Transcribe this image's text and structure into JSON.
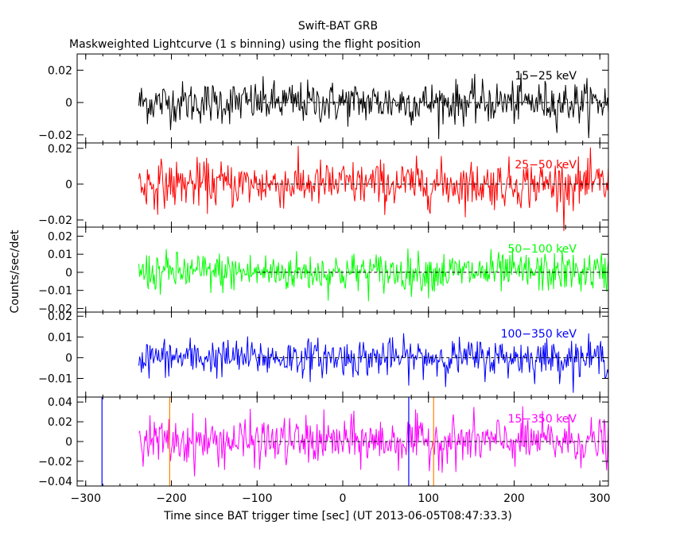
{
  "chart_data": {
    "type": "line",
    "title": "Swift-BAT GRB",
    "subtitle": "Maskweighted Lightcurve (1 s binning) using the flight position",
    "xlabel": "Time since BAT trigger time [sec] (UT 2013-06-05T08:47:33.3)",
    "ylabel": "Counts/sec/det",
    "xlim": [
      -310,
      310
    ],
    "xticks": [
      {
        "value": -300,
        "label": "−300"
      },
      {
        "value": -200,
        "label": "−200"
      },
      {
        "value": -100,
        "label": "−100"
      },
      {
        "value": 0,
        "label": "0"
      },
      {
        "value": 100,
        "label": "100"
      },
      {
        "value": 200,
        "label": "200"
      },
      {
        "value": 300,
        "label": "300"
      }
    ],
    "data_range": [
      -238,
      310
    ],
    "binning_sec": 1,
    "zero_line_start": -100,
    "panels": [
      {
        "name": "15−25 keV",
        "color": "#000000",
        "ylim": [
          -0.025,
          0.03
        ],
        "amplitude": 0.0065,
        "yticks": [
          {
            "value": -0.02,
            "label": "−0.02"
          },
          {
            "value": 0,
            "label": "0"
          },
          {
            "value": 0.02,
            "label": "0.02"
          }
        ]
      },
      {
        "name": "25−50 keV",
        "color": "#ff0000",
        "ylim": [
          -0.024,
          0.023
        ],
        "amplitude": 0.0065,
        "yticks": [
          {
            "value": -0.02,
            "label": "−0.02"
          },
          {
            "value": 0,
            "label": "0"
          },
          {
            "value": 0.02,
            "label": "0.02"
          }
        ]
      },
      {
        "name": "50−100 keV",
        "color": "#00ff00",
        "ylim": [
          -0.022,
          0.025
        ],
        "amplitude": 0.0055,
        "yticks": [
          {
            "value": -0.02,
            "label": "−0.02"
          },
          {
            "value": -0.01,
            "label": "−0.01"
          },
          {
            "value": 0,
            "label": "0"
          },
          {
            "value": 0.01,
            "label": "0.01"
          },
          {
            "value": 0.02,
            "label": "0.02"
          }
        ]
      },
      {
        "name": "100−350 keV",
        "color": "#0000ff",
        "ylim": [
          -0.019,
          0.022
        ],
        "amplitude": 0.0045,
        "yticks": [
          {
            "value": -0.01,
            "label": "−0.01"
          },
          {
            "value": 0,
            "label": "0"
          },
          {
            "value": 0.01,
            "label": "0.01"
          },
          {
            "value": 0.02,
            "label": "0.02"
          }
        ]
      },
      {
        "name": "15−350 keV",
        "color": "#ff00ff",
        "ylim": [
          -0.045,
          0.045
        ],
        "amplitude": 0.012,
        "yticks": [
          {
            "value": -0.04,
            "label": "−0.04"
          },
          {
            "value": -0.02,
            "label": "−0.02"
          },
          {
            "value": 0,
            "label": "0"
          },
          {
            "value": 0.02,
            "label": "0.02"
          },
          {
            "value": 0.04,
            "label": "0.04"
          }
        ]
      }
    ],
    "markers": [
      {
        "x": -281,
        "color": "#0000ff",
        "panel": 4
      },
      {
        "x": -202,
        "color": "#ff8000",
        "panel": 4
      },
      {
        "x": 77,
        "color": "#0000ff",
        "panel": 4
      },
      {
        "x": 106,
        "color": "#ff8000",
        "panel": 4
      }
    ],
    "grid": false,
    "legend": "none"
  }
}
